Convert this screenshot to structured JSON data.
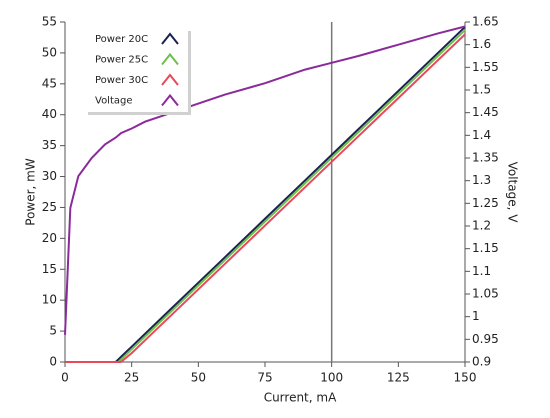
{
  "chart_data": {
    "type": "line",
    "x_label": "Current, mA",
    "y_label": "Power, mW",
    "y2_label": "Voltage, V",
    "x": [
      0,
      2,
      5,
      10,
      15,
      19,
      20,
      21,
      25,
      30,
      40,
      50,
      60,
      75,
      90,
      100,
      110,
      125,
      140,
      150
    ],
    "series": [
      {
        "name": "Power 20C",
        "color": "#1b2250",
        "values": [
          0,
          0,
          0,
          0,
          0,
          0,
          0.41,
          0.83,
          2.48,
          4.55,
          8.69,
          12.83,
          16.96,
          23.17,
          29.37,
          33.51,
          37.65,
          43.85,
          50.06,
          54.2
        ]
      },
      {
        "name": "Power 25C",
        "color": "#6cc04a",
        "values": [
          0,
          0,
          0,
          0,
          0,
          0,
          0,
          0.41,
          2.07,
          4.13,
          8.26,
          12.39,
          16.52,
          22.72,
          28.92,
          33.05,
          37.18,
          43.38,
          49.57,
          53.7
        ]
      },
      {
        "name": "Power 30C",
        "color": "#e8495a",
        "values": [
          0,
          0,
          0,
          0,
          0,
          0,
          0,
          0,
          1.44,
          3.51,
          7.63,
          11.76,
          15.88,
          22.07,
          28.26,
          32.38,
          36.51,
          42.69,
          48.88,
          53.0
        ]
      },
      {
        "name": "Voltage",
        "color": "#8b2a9a",
        "axis": "y2",
        "values": [
          0.96,
          1.24,
          1.31,
          1.35,
          1.38,
          1.395,
          1.4,
          1.405,
          1.415,
          1.43,
          1.45,
          1.47,
          1.49,
          1.515,
          1.545,
          1.56,
          1.575,
          1.6,
          1.625,
          1.64
        ]
      }
    ],
    "xlim": [
      0,
      150
    ],
    "xticks": [
      0,
      25,
      50,
      75,
      100,
      125,
      150
    ],
    "ylim": [
      0,
      55
    ],
    "yticks": [
      0,
      5,
      10,
      15,
      20,
      25,
      30,
      35,
      40,
      45,
      50,
      55
    ],
    "y2lim": [
      0.9,
      1.65
    ],
    "y2ticks": [
      0.9,
      0.95,
      1,
      1.05,
      1.1,
      1.15,
      1.2,
      1.25,
      1.3,
      1.35,
      1.4,
      1.45,
      1.5,
      1.55,
      1.6,
      1.65
    ],
    "cursor_x": 100,
    "grid": false,
    "legend": "upper left"
  }
}
